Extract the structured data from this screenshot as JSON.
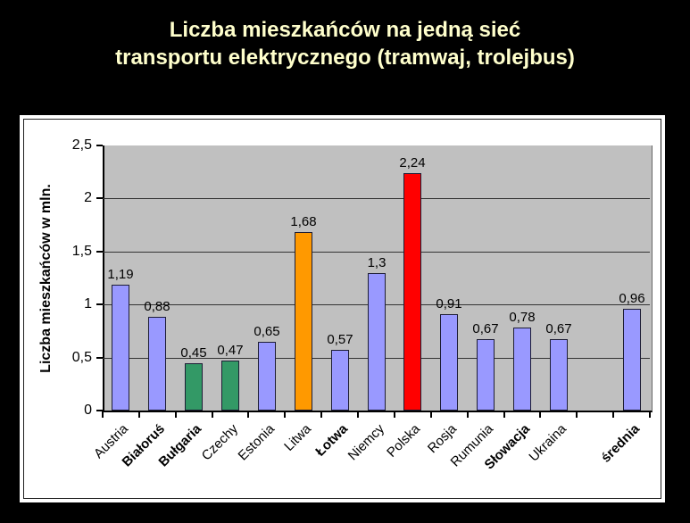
{
  "slide": {
    "background_color": "#000000",
    "title_color": "#FFFFCC",
    "panel_background": "#FFFFFF"
  },
  "title": {
    "line1": "Liczba mieszkańców na jedną sieć",
    "line2": "transportu elektrycznego (tramwaj, trolejbus)"
  },
  "chart_data": {
    "type": "bar",
    "title": "Liczba mieszkańców na jedną sieć transportu elektrycznego (tramwaj, trolejbus)",
    "xlabel": "",
    "ylabel": "Liczba mieszkańców w mln.",
    "ylim": [
      0,
      2.5
    ],
    "ytick_step": 0.5,
    "ytick_labels": [
      "0",
      "0,5",
      "1",
      "1,5",
      "2",
      "2,5"
    ],
    "grid": true,
    "legend": false,
    "plot_background": "#C0C0C0",
    "gridline_color": "#333333",
    "gap_before_last_category": true,
    "categories": [
      "Austria",
      "Białoruś",
      "Bułgaria",
      "Czechy",
      "Estonia",
      "Litwa",
      "Łotwa",
      "Niemcy",
      "Polska",
      "Rosja",
      "Rumunia",
      "Słowacja",
      "Ukraina",
      "średnia"
    ],
    "bold_categories": [
      false,
      true,
      true,
      false,
      false,
      false,
      true,
      false,
      false,
      false,
      false,
      true,
      false,
      true
    ],
    "values": [
      1.19,
      0.88,
      0.45,
      0.47,
      0.65,
      1.68,
      0.57,
      1.3,
      2.24,
      0.91,
      0.67,
      0.78,
      0.67,
      0.96
    ],
    "value_labels": [
      "1,19",
      "0,88",
      "0,45",
      "0,47",
      "0,65",
      "1,68",
      "0,57",
      "1,3",
      "2,24",
      "0,91",
      "0,67",
      "0,78",
      "0,67",
      "0,96"
    ],
    "bar_colors": [
      "#9999FF",
      "#9999FF",
      "#339966",
      "#339966",
      "#9999FF",
      "#FF9900",
      "#9999FF",
      "#9999FF",
      "#FF0000",
      "#9999FF",
      "#9999FF",
      "#9999FF",
      "#9999FF",
      "#9999FF"
    ]
  }
}
